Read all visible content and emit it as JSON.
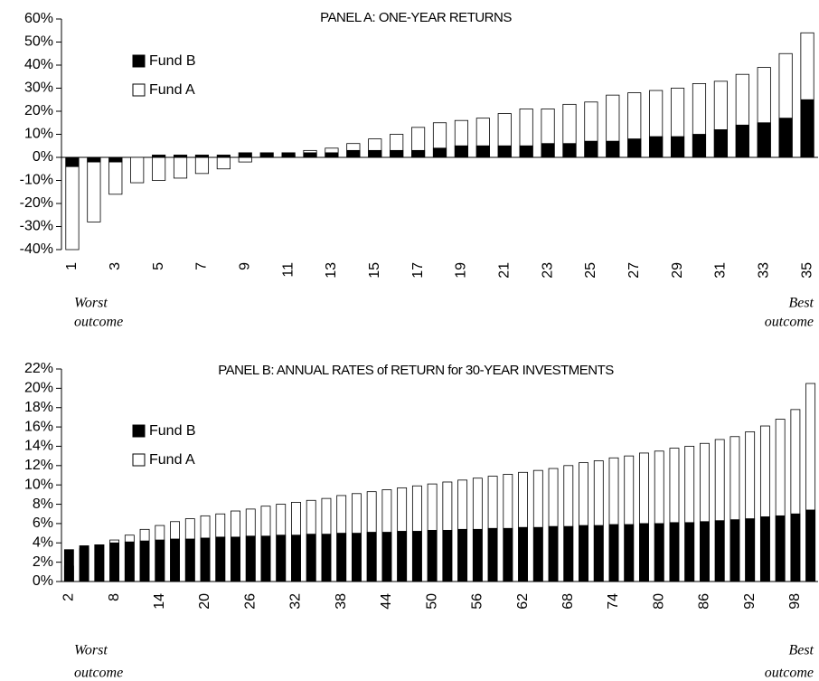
{
  "chart_data": [
    {
      "type": "bar",
      "title": "PANEL A:  ONE-YEAR RETURNS",
      "categories": [
        1,
        null,
        3,
        null,
        5,
        null,
        7,
        null,
        9,
        null,
        11,
        null,
        13,
        null,
        15,
        null,
        17,
        null,
        19,
        null,
        21,
        null,
        23,
        null,
        25,
        null,
        27,
        null,
        29,
        null,
        31,
        null,
        33,
        null,
        35
      ],
      "series": [
        {
          "name": "Fund B",
          "color": "#000000",
          "values": [
            -4,
            -2,
            -2,
            0,
            1,
            1,
            1,
            1,
            2,
            2,
            2,
            2,
            2,
            3,
            3,
            3,
            3,
            4,
            5,
            5,
            5,
            5,
            6,
            6,
            7,
            7,
            8,
            9,
            9,
            10,
            12,
            14,
            15,
            17,
            25
          ]
        },
        {
          "name": "Fund A",
          "color": "#ffffff",
          "values": [
            -40,
            -28,
            -16,
            -11,
            -10,
            -9,
            -7,
            -5,
            -2,
            0,
            1,
            3,
            4,
            6,
            8,
            10,
            13,
            15,
            16,
            17,
            19,
            21,
            21,
            23,
            24,
            27,
            28,
            29,
            30,
            32,
            33,
            36,
            39,
            45,
            54
          ]
        }
      ],
      "ylim": [
        -40,
        60
      ],
      "yticks": [
        {
          "value": -40,
          "label": "-40%"
        },
        {
          "value": -30,
          "label": "-30%"
        },
        {
          "value": -20,
          "label": "-20%"
        },
        {
          "value": -10,
          "label": "-10%"
        },
        {
          "value": 0,
          "label": "0%"
        },
        {
          "value": 10,
          "label": "10%"
        },
        {
          "value": 20,
          "label": "20%"
        },
        {
          "value": 30,
          "label": "30%"
        },
        {
          "value": 40,
          "label": "40%"
        },
        {
          "value": 50,
          "label": "50%"
        },
        {
          "value": 60,
          "label": "60%"
        }
      ],
      "left_note": [
        "Worst",
        "outcome"
      ],
      "right_note": [
        "Best",
        "outcome"
      ]
    },
    {
      "type": "bar",
      "title": "PANEL B:  ANNUAL RATES of RETURN for 30-YEAR INVESTMENTS",
      "categories": [
        2,
        null,
        null,
        8,
        null,
        null,
        14,
        null,
        null,
        20,
        null,
        null,
        26,
        null,
        null,
        32,
        null,
        null,
        38,
        null,
        null,
        44,
        null,
        null,
        50,
        null,
        null,
        56,
        null,
        null,
        62,
        null,
        null,
        68,
        null,
        null,
        74,
        null,
        null,
        80,
        null,
        null,
        86,
        null,
        null,
        92,
        null,
        null,
        98,
        null
      ],
      "series": [
        {
          "name": "Fund B",
          "color": "#000000",
          "values": [
            3.3,
            3.7,
            3.8,
            4.0,
            4.1,
            4.2,
            4.3,
            4.4,
            4.4,
            4.5,
            4.6,
            4.6,
            4.7,
            4.7,
            4.8,
            4.8,
            4.9,
            4.9,
            5.0,
            5.0,
            5.1,
            5.1,
            5.2,
            5.2,
            5.3,
            5.3,
            5.4,
            5.4,
            5.5,
            5.5,
            5.6,
            5.6,
            5.7,
            5.7,
            5.8,
            5.8,
            5.9,
            5.9,
            6.0,
            6.0,
            6.1,
            6.1,
            6.2,
            6.3,
            6.4,
            6.5,
            6.7,
            6.8,
            7.0,
            7.4
          ]
        },
        {
          "name": "Fund A",
          "color": "#ffffff",
          "values": [
            1.6,
            3.4,
            3.8,
            4.3,
            4.8,
            5.4,
            5.8,
            6.2,
            6.5,
            6.8,
            7.0,
            7.3,
            7.5,
            7.8,
            8.0,
            8.2,
            8.4,
            8.6,
            8.9,
            9.1,
            9.3,
            9.5,
            9.7,
            9.9,
            10.1,
            10.3,
            10.5,
            10.7,
            10.9,
            11.1,
            11.3,
            11.5,
            11.7,
            12.0,
            12.3,
            12.5,
            12.8,
            13.0,
            13.3,
            13.5,
            13.8,
            14.0,
            14.3,
            14.7,
            15.0,
            15.5,
            16.1,
            16.8,
            17.8,
            20.5
          ]
        }
      ],
      "ylim": [
        0,
        22
      ],
      "yticks": [
        {
          "value": 0,
          "label": "0%"
        },
        {
          "value": 2,
          "label": "2%"
        },
        {
          "value": 4,
          "label": "4%"
        },
        {
          "value": 6,
          "label": "6%"
        },
        {
          "value": 8,
          "label": "8%"
        },
        {
          "value": 10,
          "label": "10%"
        },
        {
          "value": 12,
          "label": "12%"
        },
        {
          "value": 14,
          "label": "14%"
        },
        {
          "value": 16,
          "label": "16%"
        },
        {
          "value": 18,
          "label": "18%"
        },
        {
          "value": 20,
          "label": "20%"
        },
        {
          "value": 22,
          "label": "22%"
        }
      ],
      "left_note": [
        "Worst",
        "outcome"
      ],
      "right_note": [
        "Best",
        "outcome"
      ]
    }
  ]
}
